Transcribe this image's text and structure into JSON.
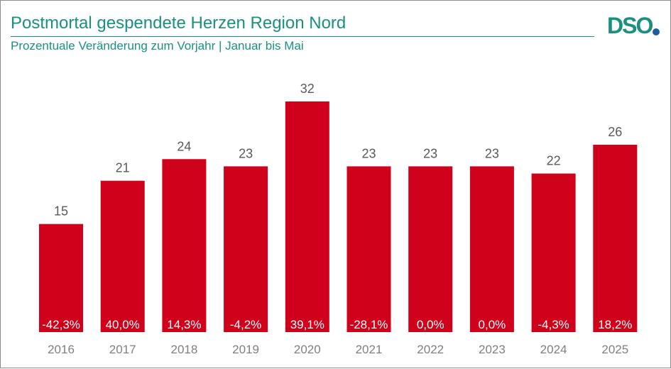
{
  "header": {
    "title": "Postmortal gespendete Herzen Region Nord",
    "subtitle": "Prozentuale Veränderung zum Vorjahr | Januar bis Mai",
    "logo_text": "DSO"
  },
  "colors": {
    "bar": "#d0011b",
    "accent": "#1a9080",
    "logo_dot": "#1b5fa0",
    "value_label": "#595959",
    "tick_label": "#7f7f7f"
  },
  "chart_data": {
    "type": "bar",
    "categories": [
      "2016",
      "2017",
      "2018",
      "2019",
      "2020",
      "2021",
      "2022",
      "2023",
      "2024",
      "2025"
    ],
    "values": [
      15,
      21,
      24,
      23,
      32,
      23,
      23,
      23,
      22,
      26
    ],
    "change_labels": [
      "-42,3%",
      "40,0%",
      "14,3%",
      "-4,2%",
      "39,1%",
      "-28,1%",
      "0,0%",
      "0,0%",
      "-4,3%",
      "18,2%"
    ],
    "title": "Postmortal gespendete Herzen Region Nord",
    "subtitle": "Prozentuale Veränderung zum Vorjahr | Januar bis Mai",
    "xlabel": "",
    "ylabel": "",
    "ylim": [
      0,
      32
    ],
    "grid": false,
    "legend": "none"
  }
}
